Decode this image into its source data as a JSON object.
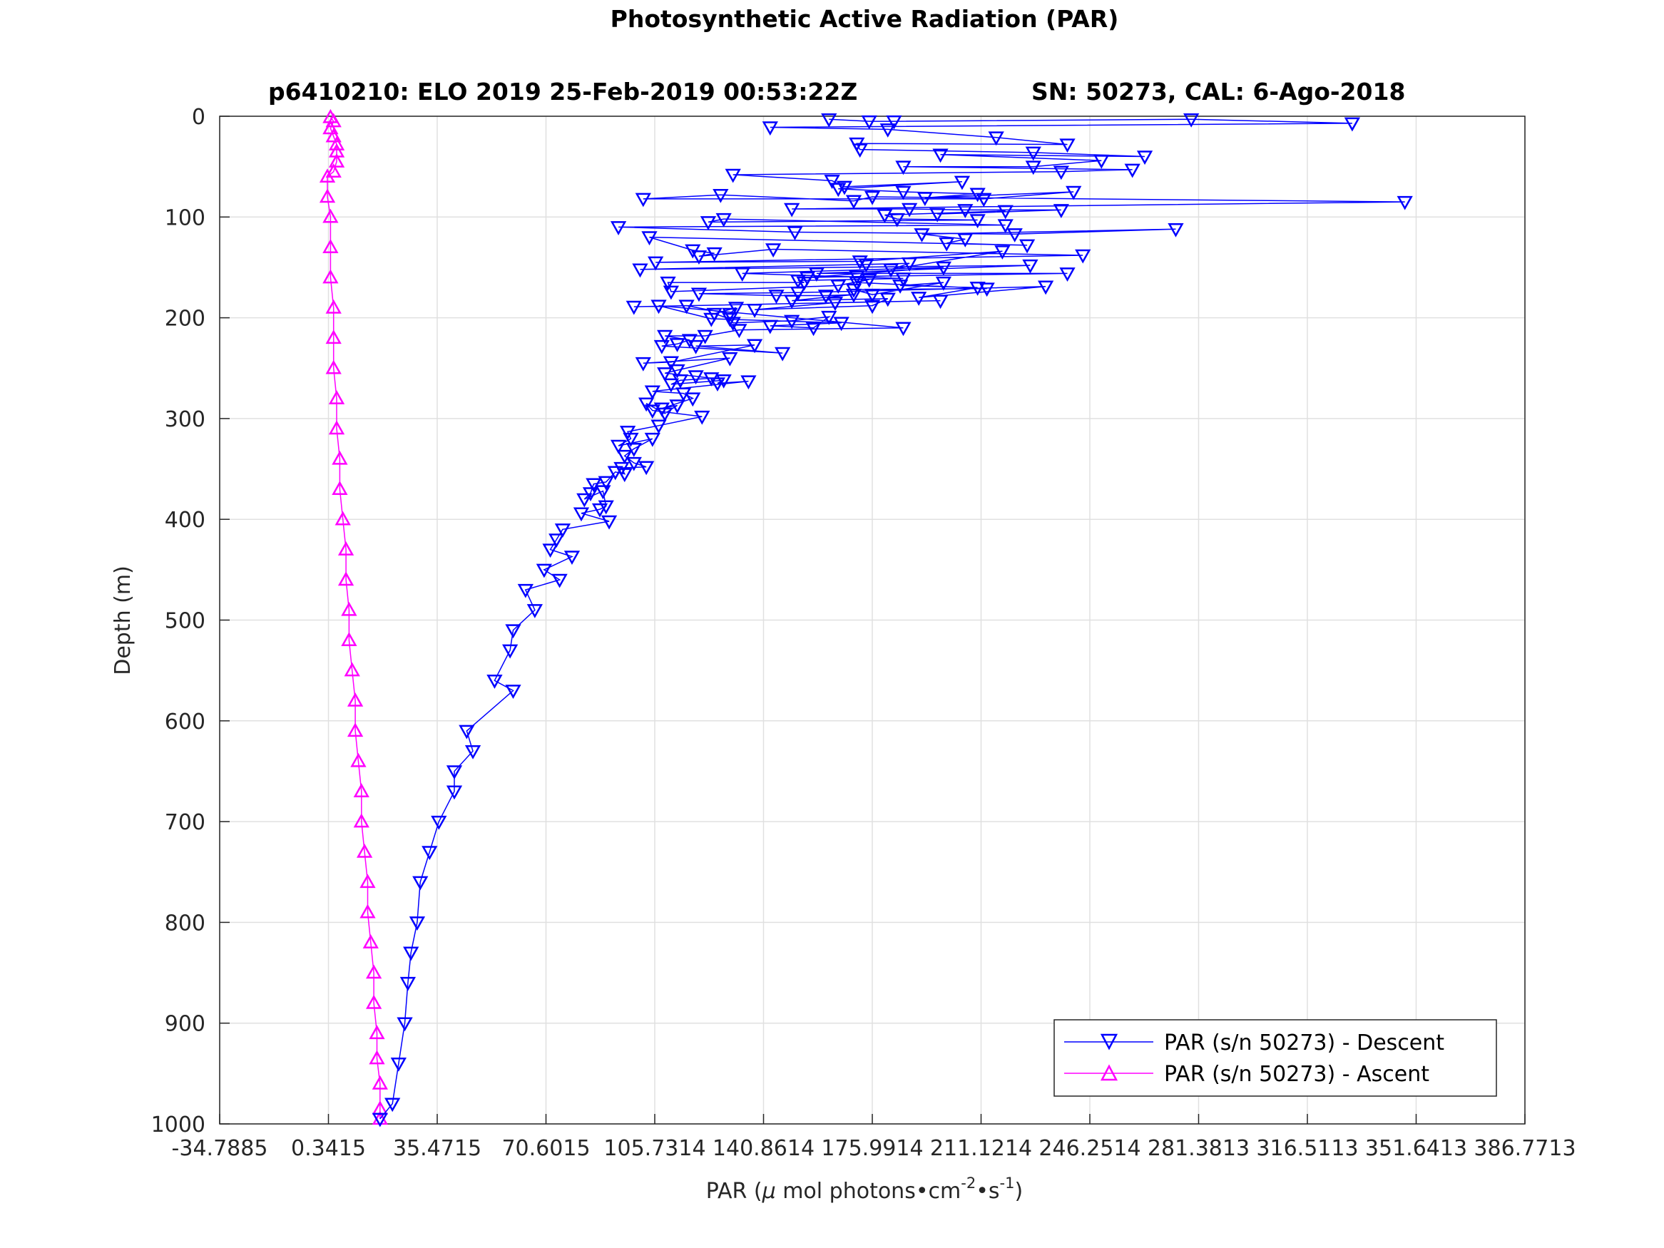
{
  "title": "Photosynthetic Active Radiation (PAR)",
  "subtitle_left": "p6410210: ELO 2019 25-Feb-2019 00:53:22Z",
  "subtitle_right": "SN: 50273, CAL: 6-Ago-2018",
  "xlabel_prefix": "PAR (",
  "xlabel_mu": "μ",
  "xlabel_mid": " mol photons•cm",
  "xlabel_sup1": "-2",
  "xlabel_dot": "•s",
  "xlabel_sup2": "-1",
  "xlabel_suffix": ")",
  "ylabel": "Depth (m)",
  "colors": {
    "descent": "#0000ff",
    "ascent": "#ff00ff",
    "grid": "#e0e0e0",
    "axis": "#262626"
  },
  "chart_data": {
    "type": "line",
    "xlim": [
      -34.7885,
      386.7713
    ],
    "ylim": [
      0,
      1000
    ],
    "y_reversed": true,
    "grid": true,
    "legend_position": "bottom-right",
    "x_ticks": [
      -34.7885,
      0.3415,
      35.4715,
      70.6015,
      105.7314,
      140.8614,
      175.9914,
      211.1214,
      246.2514,
      281.3813,
      316.5113,
      351.6413,
      386.7713
    ],
    "x_tick_labels": [
      "-34.7885",
      "0.3415",
      "35.4715",
      "70.6015",
      "105.7314",
      "140.8614",
      "175.9914",
      "211.1214",
      "246.2514",
      "281.3813",
      "316.5113",
      "351.6413",
      "386.7713"
    ],
    "y_ticks": [
      0,
      100,
      200,
      300,
      400,
      500,
      600,
      700,
      800,
      900,
      1000
    ],
    "y_tick_labels": [
      "0",
      "100",
      "200",
      "300",
      "400",
      "500",
      "600",
      "700",
      "800",
      "900",
      "1000"
    ],
    "series": [
      {
        "name": "PAR (s/n 50273) - Descent",
        "marker": "triangle-down",
        "points": [
          [
            162,
            3
          ],
          [
            175,
            5
          ],
          [
            183,
            5
          ],
          [
            279,
            3
          ],
          [
            331,
            7
          ],
          [
            143,
            11
          ],
          [
            181,
            13
          ],
          [
            216,
            21
          ],
          [
            239,
            28
          ],
          [
            171,
            27
          ],
          [
            172,
            33
          ],
          [
            228,
            36
          ],
          [
            264,
            40
          ],
          [
            198,
            38
          ],
          [
            250,
            44
          ],
          [
            228,
            50
          ],
          [
            186,
            50
          ],
          [
            260,
            53
          ],
          [
            237,
            55
          ],
          [
            131,
            58
          ],
          [
            163,
            64
          ],
          [
            167,
            70
          ],
          [
            205,
            65
          ],
          [
            165,
            72
          ],
          [
            186,
            75
          ],
          [
            210,
            77
          ],
          [
            193,
            81
          ],
          [
            241,
            75
          ],
          [
            212,
            82
          ],
          [
            102,
            82
          ],
          [
            127,
            78
          ],
          [
            170,
            84
          ],
          [
            176,
            80
          ],
          [
            348,
            85
          ],
          [
            150,
            92
          ],
          [
            188,
            92
          ],
          [
            206,
            93
          ],
          [
            237,
            93
          ],
          [
            197,
            97
          ],
          [
            219,
            94
          ],
          [
            180,
            98
          ],
          [
            184,
            102
          ],
          [
            210,
            103
          ],
          [
            123,
            105
          ],
          [
            128,
            102
          ],
          [
            219,
            108
          ],
          [
            94,
            110
          ],
          [
            151,
            115
          ],
          [
            222,
            117
          ],
          [
            274,
            112
          ],
          [
            192,
            117
          ],
          [
            206,
            122
          ],
          [
            200,
            126
          ],
          [
            226,
            128
          ],
          [
            104,
            120
          ],
          [
            118,
            133
          ],
          [
            125,
            136
          ],
          [
            120,
            139
          ],
          [
            144,
            132
          ],
          [
            244,
            138
          ],
          [
            106,
            145
          ],
          [
            172,
            144
          ],
          [
            218,
            134
          ],
          [
            182,
            152
          ],
          [
            188,
            146
          ],
          [
            174,
            147
          ],
          [
            101,
            152
          ],
          [
            227,
            148
          ],
          [
            158,
            156
          ],
          [
            239,
            156
          ],
          [
            171,
            159
          ],
          [
            155,
            160
          ],
          [
            199,
            150
          ],
          [
            134,
            156
          ],
          [
            186,
            161
          ],
          [
            152,
            163
          ],
          [
            154,
            165
          ],
          [
            110,
            165
          ],
          [
            111,
            174
          ],
          [
            165,
            168
          ],
          [
            175,
            162
          ],
          [
            171,
            165
          ],
          [
            213,
            171
          ],
          [
            170,
            172
          ],
          [
            176,
            177
          ],
          [
            199,
            165
          ],
          [
            185,
            168
          ],
          [
            210,
            170
          ],
          [
            191,
            180
          ],
          [
            232,
            169
          ],
          [
            152,
            175
          ],
          [
            120,
            176
          ],
          [
            145,
            178
          ],
          [
            161,
            178
          ],
          [
            170,
            177
          ],
          [
            150,
            183
          ],
          [
            181,
            181
          ],
          [
            176,
            188
          ],
          [
            138,
            192
          ],
          [
            164,
            185
          ],
          [
            198,
            183
          ],
          [
            99,
            189
          ],
          [
            116,
            188
          ],
          [
            130,
            196
          ],
          [
            132,
            190
          ],
          [
            125,
            196
          ],
          [
            130,
            201
          ],
          [
            131,
            205
          ],
          [
            150,
            203
          ],
          [
            162,
            199
          ],
          [
            157,
            210
          ],
          [
            143,
            208
          ],
          [
            166,
            205
          ],
          [
            124,
            201
          ],
          [
            107,
            188
          ],
          [
            186,
            210
          ],
          [
            133,
            212
          ],
          [
            122,
            218
          ],
          [
            109,
            218
          ],
          [
            117,
            222
          ],
          [
            113,
            226
          ],
          [
            108,
            228
          ],
          [
            147,
            235
          ],
          [
            119,
            228
          ],
          [
            138,
            227
          ],
          [
            111,
            244
          ],
          [
            102,
            245
          ],
          [
            130,
            240
          ],
          [
            113,
            252
          ],
          [
            109,
            255
          ],
          [
            119,
            258
          ],
          [
            124,
            260
          ],
          [
            114,
            262
          ],
          [
            111,
            266
          ],
          [
            128,
            262
          ],
          [
            126,
            265
          ],
          [
            136,
            263
          ],
          [
            105,
            273
          ],
          [
            115,
            275
          ],
          [
            118,
            280
          ],
          [
            108,
            290
          ],
          [
            113,
            287
          ],
          [
            109,
            295
          ],
          [
            103,
            285
          ],
          [
            105,
            292
          ],
          [
            121,
            298
          ],
          [
            107,
            307
          ],
          [
            97,
            313
          ],
          [
            98,
            320
          ],
          [
            94,
            327
          ],
          [
            105,
            320
          ],
          [
            99,
            330
          ],
          [
            96,
            337
          ],
          [
            99,
            344
          ],
          [
            103,
            348
          ],
          [
            95,
            349
          ],
          [
            96,
            355
          ],
          [
            93,
            353
          ],
          [
            90,
            363
          ],
          [
            86,
            365
          ],
          [
            85,
            374
          ],
          [
            83,
            380
          ],
          [
            89,
            372
          ],
          [
            90,
            387
          ],
          [
            88,
            390
          ],
          [
            82,
            394
          ],
          [
            91,
            402
          ],
          [
            76,
            410
          ],
          [
            74,
            420
          ],
          [
            72,
            430
          ],
          [
            79,
            437
          ],
          [
            70,
            450
          ],
          [
            75,
            460
          ],
          [
            64,
            470
          ],
          [
            67,
            490
          ],
          [
            60,
            510
          ],
          [
            59,
            530
          ],
          [
            54,
            560
          ],
          [
            60,
            570
          ],
          [
            45,
            610
          ],
          [
            47,
            630
          ],
          [
            41,
            650
          ],
          [
            41,
            670
          ],
          [
            36,
            700
          ],
          [
            33,
            730
          ],
          [
            30,
            760
          ],
          [
            29,
            800
          ],
          [
            27,
            830
          ],
          [
            26,
            860
          ],
          [
            25,
            900
          ],
          [
            23,
            940
          ],
          [
            21,
            980
          ],
          [
            17,
            995
          ]
        ]
      },
      {
        "name": "PAR (s/n 50273) - Ascent",
        "marker": "triangle-up",
        "points": [
          [
            17,
            995
          ],
          [
            17,
            985
          ],
          [
            17,
            960
          ],
          [
            16,
            935
          ],
          [
            16,
            910
          ],
          [
            15,
            880
          ],
          [
            15,
            850
          ],
          [
            14,
            820
          ],
          [
            13,
            790
          ],
          [
            13,
            760
          ],
          [
            12,
            730
          ],
          [
            11,
            700
          ],
          [
            11,
            670
          ],
          [
            10,
            640
          ],
          [
            9,
            610
          ],
          [
            9,
            580
          ],
          [
            8,
            550
          ],
          [
            7,
            520
          ],
          [
            7,
            490
          ],
          [
            6,
            460
          ],
          [
            6,
            430
          ],
          [
            5,
            400
          ],
          [
            4,
            370
          ],
          [
            4,
            340
          ],
          [
            3,
            310
          ],
          [
            3,
            280
          ],
          [
            2,
            250
          ],
          [
            2,
            220
          ],
          [
            2,
            190
          ],
          [
            1,
            160
          ],
          [
            1,
            130
          ],
          [
            1,
            100
          ],
          [
            0,
            80
          ],
          [
            0,
            60
          ],
          [
            2,
            55
          ],
          [
            3,
            45
          ],
          [
            3,
            35
          ],
          [
            3,
            28
          ],
          [
            2,
            20
          ],
          [
            1,
            12
          ],
          [
            2,
            5
          ],
          [
            1,
            1
          ]
        ]
      }
    ]
  }
}
